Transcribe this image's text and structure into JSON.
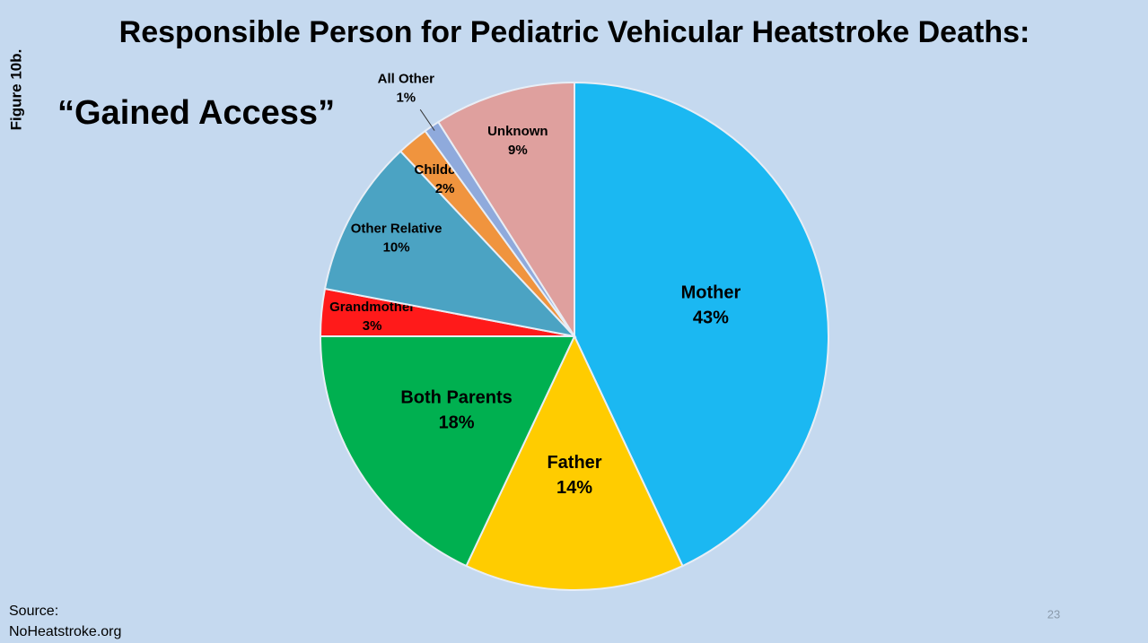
{
  "figure_label": "Figure 10b.",
  "source": [
    "Source:",
    "NoHeatstroke.org"
  ],
  "page_number": "23",
  "chart_data": {
    "type": "pie",
    "title": "Responsible Person for Pediatric Vehicular Heatstroke Deaths:",
    "subtitle": "“Gained Access”",
    "categories": [
      "Mother",
      "Father",
      "Both Parents",
      "Grandmother",
      "Other Relative",
      "Childcare",
      "All Other",
      "Unknown"
    ],
    "values": [
      43,
      14,
      18,
      3,
      10,
      2,
      1,
      9
    ],
    "value_labels": [
      "43%",
      "14%",
      "18%",
      "3%",
      "10%",
      "2%",
      "1%",
      "9%"
    ],
    "colors": [
      "#1bb8f2",
      "#ffcc00",
      "#00b050",
      "#ff1a1a",
      "#4ba3c3",
      "#f0943e",
      "#8faadc",
      "#dfa09e"
    ]
  }
}
